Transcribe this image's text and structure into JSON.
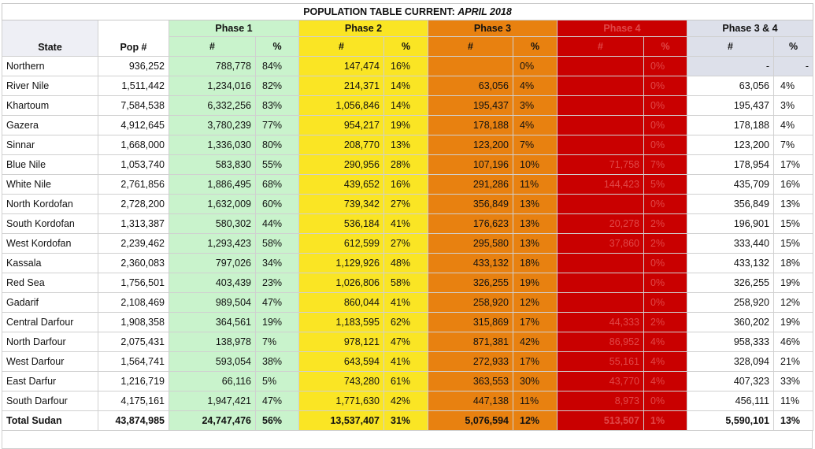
{
  "title": {
    "main": "POPULATION TABLE CURRENT:",
    "date": "APRIL 2018"
  },
  "headers": {
    "state": "State",
    "pop": "Pop #",
    "phases": [
      "Phase 1",
      "Phase 2",
      "Phase 3",
      "Phase 4",
      "Phase 3 & 4"
    ],
    "num": "#",
    "pct": "%"
  },
  "colors": {
    "phase1": "#c9f3cc",
    "phase2": "#fae524",
    "phase3": "#e88110",
    "phase4": "#c90000",
    "phase34": "#dde0ea"
  },
  "rows": [
    {
      "state": "Northern",
      "pop": "936,252",
      "p1n": "788,778",
      "p1p": "84%",
      "p2n": "147,474",
      "p2p": "16%",
      "p3n": "",
      "p3p": "0%",
      "p4n": "",
      "p4p": "0%",
      "p34n": "-",
      "p34p": "-"
    },
    {
      "state": "River Nile",
      "pop": "1,511,442",
      "p1n": "1,234,016",
      "p1p": "82%",
      "p2n": "214,371",
      "p2p": "14%",
      "p3n": "63,056",
      "p3p": "4%",
      "p4n": "",
      "p4p": "0%",
      "p34n": "63,056",
      "p34p": "4%"
    },
    {
      "state": "Khartoum",
      "pop": "7,584,538",
      "p1n": "6,332,256",
      "p1p": "83%",
      "p2n": "1,056,846",
      "p2p": "14%",
      "p3n": "195,437",
      "p3p": "3%",
      "p4n": "",
      "p4p": "0%",
      "p34n": "195,437",
      "p34p": "3%"
    },
    {
      "state": "Gazera",
      "pop": "4,912,645",
      "p1n": "3,780,239",
      "p1p": "77%",
      "p2n": "954,217",
      "p2p": "19%",
      "p3n": "178,188",
      "p3p": "4%",
      "p4n": "",
      "p4p": "0%",
      "p34n": "178,188",
      "p34p": "4%"
    },
    {
      "state": "Sinnar",
      "pop": "1,668,000",
      "p1n": "1,336,030",
      "p1p": "80%",
      "p2n": "208,770",
      "p2p": "13%",
      "p3n": "123,200",
      "p3p": "7%",
      "p4n": "",
      "p4p": "0%",
      "p34n": "123,200",
      "p34p": "7%"
    },
    {
      "state": "Blue Nile",
      "pop": "1,053,740",
      "p1n": "583,830",
      "p1p": "55%",
      "p2n": "290,956",
      "p2p": "28%",
      "p3n": "107,196",
      "p3p": "10%",
      "p4n": "71,758",
      "p4p": "7%",
      "p34n": "178,954",
      "p34p": "17%"
    },
    {
      "state": "White Nile",
      "pop": "2,761,856",
      "p1n": "1,886,495",
      "p1p": "68%",
      "p2n": "439,652",
      "p2p": "16%",
      "p3n": "291,286",
      "p3p": "11%",
      "p4n": "144,423",
      "p4p": "5%",
      "p34n": "435,709",
      "p34p": "16%"
    },
    {
      "state": "North Kordofan",
      "pop": "2,728,200",
      "p1n": "1,632,009",
      "p1p": "60%",
      "p2n": "739,342",
      "p2p": "27%",
      "p3n": "356,849",
      "p3p": "13%",
      "p4n": "",
      "p4p": "0%",
      "p34n": "356,849",
      "p34p": "13%"
    },
    {
      "state": "South Kordofan",
      "pop": "1,313,387",
      "p1n": "580,302",
      "p1p": "44%",
      "p2n": "536,184",
      "p2p": "41%",
      "p3n": "176,623",
      "p3p": "13%",
      "p4n": "20,278",
      "p4p": "2%",
      "p34n": "196,901",
      "p34p": "15%"
    },
    {
      "state": "West Kordofan",
      "pop": "2,239,462",
      "p1n": "1,293,423",
      "p1p": "58%",
      "p2n": "612,599",
      "p2p": "27%",
      "p3n": "295,580",
      "p3p": "13%",
      "p4n": "37,860",
      "p4p": "2%",
      "p34n": "333,440",
      "p34p": "15%"
    },
    {
      "state": "Kassala",
      "pop": "2,360,083",
      "p1n": "797,026",
      "p1p": "34%",
      "p2n": "1,129,926",
      "p2p": "48%",
      "p3n": "433,132",
      "p3p": "18%",
      "p4n": "",
      "p4p": "0%",
      "p34n": "433,132",
      "p34p": "18%"
    },
    {
      "state": "Red Sea",
      "pop": "1,756,501",
      "p1n": "403,439",
      "p1p": "23%",
      "p2n": "1,026,806",
      "p2p": "58%",
      "p3n": "326,255",
      "p3p": "19%",
      "p4n": "",
      "p4p": "0%",
      "p34n": "326,255",
      "p34p": "19%"
    },
    {
      "state": "Gadarif",
      "pop": "2,108,469",
      "p1n": "989,504",
      "p1p": "47%",
      "p2n": "860,044",
      "p2p": "41%",
      "p3n": "258,920",
      "p3p": "12%",
      "p4n": "",
      "p4p": "0%",
      "p34n": "258,920",
      "p34p": "12%"
    },
    {
      "state": "Central Darfour",
      "pop": "1,908,358",
      "p1n": "364,561",
      "p1p": "19%",
      "p2n": "1,183,595",
      "p2p": "62%",
      "p3n": "315,869",
      "p3p": "17%",
      "p4n": "44,333",
      "p4p": "2%",
      "p34n": "360,202",
      "p34p": "19%"
    },
    {
      "state": "North Darfour",
      "pop": "2,075,431",
      "p1n": "138,978",
      "p1p": "7%",
      "p2n": "978,121",
      "p2p": "47%",
      "p3n": "871,381",
      "p3p": "42%",
      "p4n": "86,952",
      "p4p": "4%",
      "p34n": "958,333",
      "p34p": "46%"
    },
    {
      "state": "West Darfour",
      "pop": "1,564,741",
      "p1n": "593,054",
      "p1p": "38%",
      "p2n": "643,594",
      "p2p": "41%",
      "p3n": "272,933",
      "p3p": "17%",
      "p4n": "55,161",
      "p4p": "4%",
      "p34n": "328,094",
      "p34p": "21%"
    },
    {
      "state": "East Darfur",
      "pop": "1,216,719",
      "p1n": "66,116",
      "p1p": "5%",
      "p2n": "743,280",
      "p2p": "61%",
      "p3n": "363,553",
      "p3p": "30%",
      "p4n": "43,770",
      "p4p": "4%",
      "p34n": "407,323",
      "p34p": "33%"
    },
    {
      "state": "South Darfour",
      "pop": "4,175,161",
      "p1n": "1,947,421",
      "p1p": "47%",
      "p2n": "1,771,630",
      "p2p": "42%",
      "p3n": "447,138",
      "p3p": "11%",
      "p4n": "8,973",
      "p4p": "0%",
      "p34n": "456,111",
      "p34p": "11%"
    }
  ],
  "total": {
    "state": "Total Sudan",
    "pop": "43,874,985",
    "p1n": "24,747,476",
    "p1p": "56%",
    "p2n": "13,537,407",
    "p2p": "31%",
    "p3n": "5,076,594",
    "p3p": "12%",
    "p4n": "513,507",
    "p4p": "1%",
    "p34n": "5,590,101",
    "p34p": "13%"
  }
}
